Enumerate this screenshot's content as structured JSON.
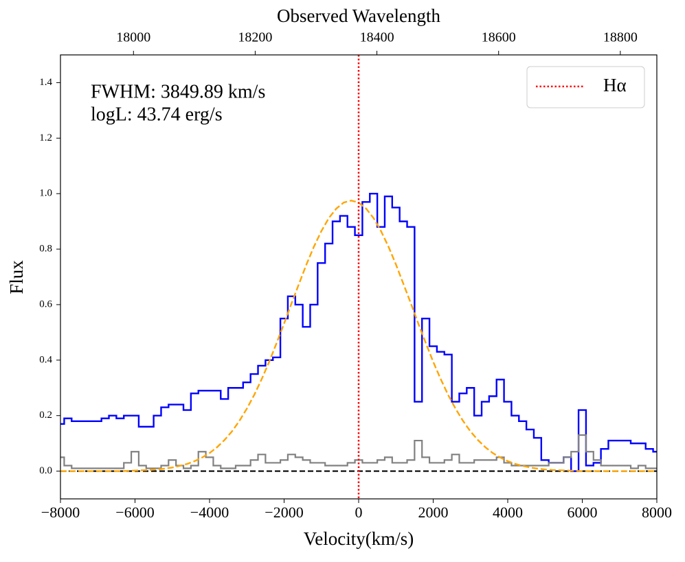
{
  "chart_data": {
    "type": "step",
    "xlabel": "Velocity(km/s)",
    "ylabel": "Flux",
    "x2label": "Observed Wavelength",
    "annotations": [
      "FWHM: 3849.89 km/s",
      "logL: 43.74 erg/s"
    ],
    "xlim": [
      -8000,
      8000
    ],
    "ylim": [
      -0.1,
      1.5
    ],
    "x2lim": [
      17880,
      18860
    ],
    "xticks": [
      {
        "value": -8000,
        "label": "−8000"
      },
      {
        "value": -6000,
        "label": "−6000"
      },
      {
        "value": -4000,
        "label": "−4000"
      },
      {
        "value": -2000,
        "label": "−2000"
      },
      0,
      2000,
      4000,
      6000,
      8000
    ],
    "yticks": [
      {
        "value": 0,
        "label": "0.0"
      },
      {
        "value": 0.2,
        "label": "0.2"
      },
      {
        "value": 0.4,
        "label": "0.4"
      },
      {
        "value": 0.6,
        "label": "0.6"
      },
      {
        "value": 0.8,
        "label": "0.8"
      },
      {
        "value": 1,
        "label": "1.0"
      },
      {
        "value": 1.2,
        "label": "1.2"
      },
      {
        "value": 1.4,
        "label": "1.4"
      }
    ],
    "x2ticks": [
      18000,
      18200,
      18400,
      18600,
      18800
    ],
    "x": [
      -8000,
      -7800,
      -7600,
      -7400,
      -7200,
      -7000,
      -6800,
      -6600,
      -6400,
      -6200,
      -6000,
      -5800,
      -5600,
      -5400,
      -5200,
      -5000,
      -4800,
      -4600,
      -4400,
      -4200,
      -4000,
      -3800,
      -3600,
      -3400,
      -3200,
      -3000,
      -2800,
      -2600,
      -2400,
      -2200,
      -2000,
      -1800,
      -1600,
      -1400,
      -1200,
      -1000,
      -800,
      -600,
      -400,
      -200,
      0,
      200,
      400,
      600,
      800,
      1000,
      1200,
      1400,
      1600,
      1800,
      2000,
      2200,
      2400,
      2600,
      2800,
      3000,
      3200,
      3400,
      3600,
      3800,
      4000,
      4200,
      4400,
      4600,
      4800,
      5000,
      5200,
      5400,
      5600,
      5800,
      6000,
      6200,
      6400,
      6600,
      6800,
      7000,
      7200,
      7400,
      7600,
      7800,
      8000
    ],
    "series": [
      {
        "color": "#0000ff",
        "style": "step",
        "values": [
          0.17,
          0.19,
          0.18,
          0.18,
          0.18,
          0.18,
          0.19,
          0.2,
          0.19,
          0.2,
          0.2,
          0.16,
          0.16,
          0.2,
          0.23,
          0.24,
          0.24,
          0.22,
          0.28,
          0.29,
          0.29,
          0.29,
          0.26,
          0.3,
          0.3,
          0.32,
          0.35,
          0.38,
          0.4,
          0.41,
          0.55,
          0.63,
          0.6,
          0.52,
          0.6,
          0.75,
          0.82,
          0.9,
          0.92,
          0.88,
          0.85,
          0.97,
          1.0,
          0.88,
          0.99,
          0.95,
          0.9,
          0.88,
          0.25,
          0.55,
          0.45,
          0.43,
          0.42,
          0.25,
          0.28,
          0.3,
          0.2,
          0.25,
          0.27,
          0.33,
          0.25,
          0.2,
          0.18,
          0.15,
          0.12,
          0.04,
          0.03,
          0.03,
          0.05,
          0.0,
          0.22,
          0.02,
          0.03,
          0.08,
          0.11,
          0.11,
          0.11,
          0.1,
          0.1,
          0.08,
          0.07
        ]
      },
      {
        "color": "#808080",
        "style": "step",
        "values": [
          0.05,
          0.02,
          0.01,
          0.01,
          0.01,
          0.01,
          0.01,
          0.01,
          0.01,
          0.03,
          0.07,
          0.02,
          0.01,
          0.01,
          0.02,
          0.04,
          0.02,
          0.01,
          0.02,
          0.07,
          0.05,
          0.02,
          0.01,
          0.01,
          0.02,
          0.02,
          0.04,
          0.06,
          0.03,
          0.03,
          0.04,
          0.06,
          0.05,
          0.04,
          0.03,
          0.03,
          0.02,
          0.02,
          0.02,
          0.03,
          0.04,
          0.03,
          0.03,
          0.04,
          0.05,
          0.03,
          0.03,
          0.04,
          0.11,
          0.05,
          0.03,
          0.03,
          0.04,
          0.06,
          0.03,
          0.03,
          0.04,
          0.04,
          0.04,
          0.05,
          0.03,
          0.02,
          0.02,
          0.02,
          0.02,
          0.02,
          0.03,
          0.03,
          0.05,
          0.07,
          0.13,
          0.07,
          0.04,
          0.02,
          0.02,
          0.02,
          0.02,
          0.01,
          0.02,
          0.01,
          0.01
        ]
      },
      {
        "color": "#ffa500",
        "style": "dashed",
        "values": [
          0,
          0,
          0,
          0,
          0,
          0,
          0,
          0,
          0,
          0.001,
          0.002,
          0.003,
          0.004,
          0.006,
          0.009,
          0.013,
          0.019,
          0.026,
          0.036,
          0.049,
          0.065,
          0.086,
          0.112,
          0.143,
          0.181,
          0.225,
          0.275,
          0.332,
          0.394,
          0.462,
          0.532,
          0.605,
          0.675,
          0.745,
          0.809,
          0.865,
          0.912,
          0.946,
          0.968,
          0.975,
          0.968,
          0.946,
          0.912,
          0.865,
          0.809,
          0.745,
          0.675,
          0.605,
          0.532,
          0.462,
          0.394,
          0.332,
          0.275,
          0.225,
          0.181,
          0.143,
          0.112,
          0.086,
          0.065,
          0.049,
          0.036,
          0.026,
          0.019,
          0.013,
          0.009,
          0.006,
          0.004,
          0.003,
          0.002,
          0.001,
          0,
          0,
          0,
          0,
          0,
          0,
          0,
          0,
          0,
          0,
          0
        ]
      }
    ],
    "vline": {
      "x": 0,
      "name": "Hα",
      "color": "#ff0000"
    },
    "hline": {
      "y": 0,
      "color": "#000000"
    },
    "legend": "upper right"
  }
}
